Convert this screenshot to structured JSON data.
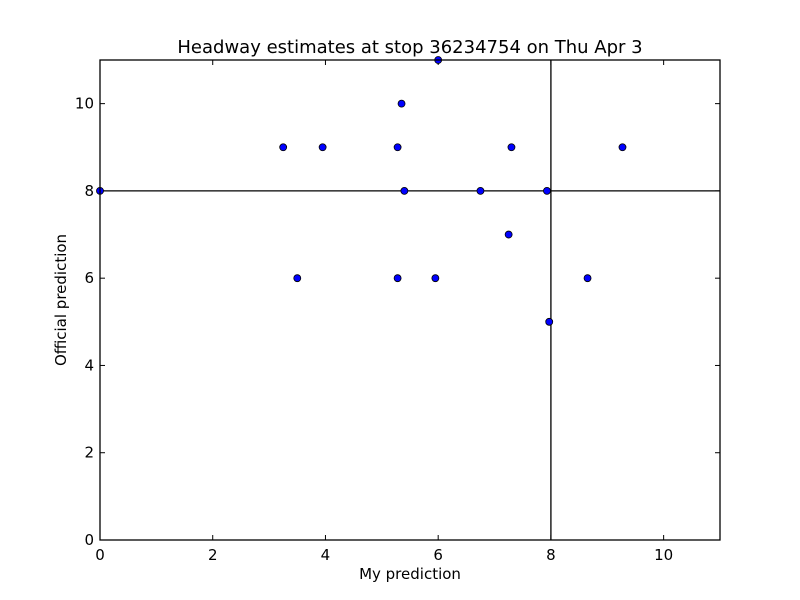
{
  "chart_data": {
    "type": "scatter",
    "title": "Headway estimates at stop 36234754 on Thu Apr 3",
    "xlabel": "My prediction",
    "ylabel": "Official prediction",
    "xlim": [
      0,
      11
    ],
    "ylim": [
      0,
      11
    ],
    "xticks": [
      0,
      2,
      4,
      6,
      8,
      10
    ],
    "yticks": [
      0,
      2,
      4,
      6,
      8,
      10
    ],
    "grid": false,
    "reference_lines": {
      "vertical_x": 8,
      "horizontal_y": 8
    },
    "marker_color": "#0000ff",
    "points": [
      {
        "x": 0.0,
        "y": 8
      },
      {
        "x": 3.25,
        "y": 9
      },
      {
        "x": 3.95,
        "y": 9
      },
      {
        "x": 5.28,
        "y": 9
      },
      {
        "x": 5.35,
        "y": 10
      },
      {
        "x": 6.0,
        "y": 11
      },
      {
        "x": 7.3,
        "y": 9
      },
      {
        "x": 9.27,
        "y": 9
      },
      {
        "x": 5.4,
        "y": 8
      },
      {
        "x": 6.75,
        "y": 8
      },
      {
        "x": 7.93,
        "y": 8
      },
      {
        "x": 7.25,
        "y": 7
      },
      {
        "x": 3.5,
        "y": 6
      },
      {
        "x": 5.28,
        "y": 6
      },
      {
        "x": 5.95,
        "y": 6
      },
      {
        "x": 8.65,
        "y": 6
      },
      {
        "x": 7.97,
        "y": 5
      }
    ]
  }
}
